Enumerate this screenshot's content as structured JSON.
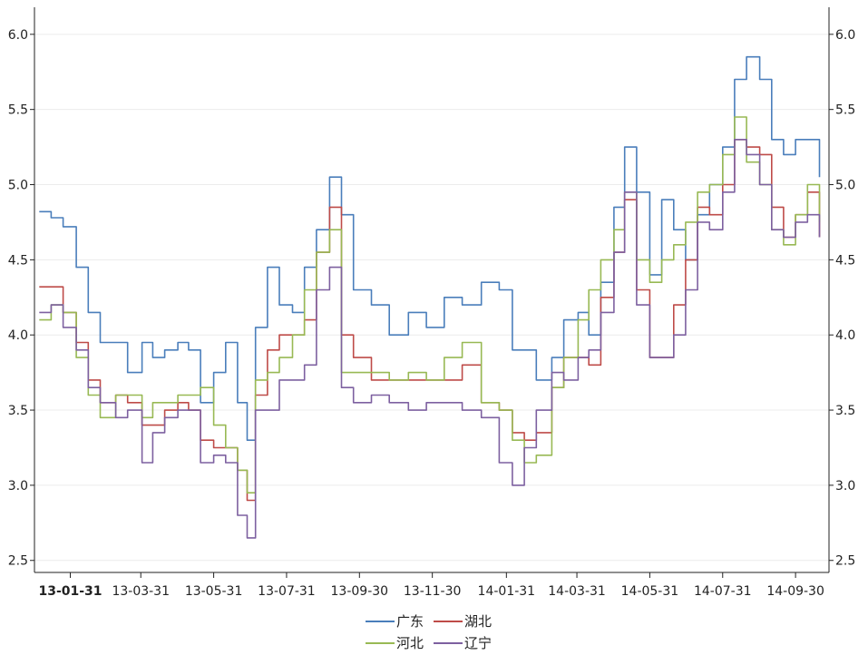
{
  "chart_data": {
    "type": "line",
    "title": "",
    "xlabel": "",
    "ylabel": "",
    "ylim": [
      2.42,
      6.18
    ],
    "yticks": [
      "2.5",
      "3.0",
      "3.5",
      "4.0",
      "4.5",
      "5.0",
      "5.5",
      "6.0"
    ],
    "x_tick_labels": [
      "13-01-31",
      "13-03-31",
      "13-05-31",
      "13-07-31",
      "13-09-30",
      "13-11-30",
      "14-01-31",
      "14-03-31",
      "14-05-31",
      "14-07-31",
      "14-09-30"
    ],
    "grid": {
      "horizontal": true,
      "vertical": false
    },
    "legend_position": "bottom",
    "series": [
      {
        "name": "广东",
        "color": "#4a7ebb",
        "x": [
          "2013-01-05",
          "2013-01-15",
          "2013-01-25",
          "2013-02-05",
          "2013-02-15",
          "2013-02-25",
          "2013-03-10",
          "2013-03-20",
          "2013-04-01",
          "2013-04-10",
          "2013-04-20",
          "2013-05-01",
          "2013-05-10",
          "2013-05-20",
          "2013-05-31",
          "2013-06-10",
          "2013-06-20",
          "2013-06-28",
          "2013-07-05",
          "2013-07-15",
          "2013-07-25",
          "2013-08-05",
          "2013-08-15",
          "2013-08-25",
          "2013-09-05",
          "2013-09-15",
          "2013-09-25",
          "2013-10-10",
          "2013-10-25",
          "2013-11-10",
          "2013-11-25",
          "2013-12-10",
          "2013-12-25",
          "2014-01-10",
          "2014-01-25",
          "2014-02-05",
          "2014-02-15",
          "2014-02-25",
          "2014-03-10",
          "2014-03-20",
          "2014-04-01",
          "2014-04-10",
          "2014-04-20",
          "2014-05-01",
          "2014-05-10",
          "2014-05-20",
          "2014-05-31",
          "2014-06-10",
          "2014-06-20",
          "2014-06-30",
          "2014-07-10",
          "2014-07-20",
          "2014-07-31",
          "2014-08-10",
          "2014-08-20",
          "2014-08-31",
          "2014-09-10",
          "2014-09-20",
          "2014-09-30",
          "2014-10-10",
          "2014-10-20"
        ],
        "values": [
          4.82,
          4.78,
          4.72,
          4.45,
          4.15,
          3.95,
          3.95,
          3.75,
          3.95,
          3.85,
          3.9,
          3.95,
          3.9,
          3.55,
          3.75,
          3.95,
          3.55,
          3.3,
          4.05,
          4.45,
          4.2,
          4.15,
          4.45,
          4.7,
          5.05,
          4.8,
          4.3,
          4.2,
          4.0,
          4.15,
          4.05,
          4.25,
          4.2,
          4.35,
          4.3,
          3.9,
          3.9,
          3.7,
          3.85,
          4.1,
          4.15,
          4.0,
          4.35,
          4.85,
          5.25,
          4.95,
          4.4,
          4.9,
          4.7,
          4.5,
          4.8,
          5.0,
          5.25,
          5.7,
          5.85,
          5.7,
          5.3,
          5.2,
          5.3,
          5.3,
          5.05
        ]
      },
      {
        "name": "湖北",
        "color": "#be4b48",
        "x": [
          "2013-01-05",
          "2013-01-15",
          "2013-01-25",
          "2013-02-05",
          "2013-02-15",
          "2013-02-25",
          "2013-03-10",
          "2013-03-20",
          "2013-04-01",
          "2013-04-10",
          "2013-04-20",
          "2013-05-01",
          "2013-05-10",
          "2013-05-20",
          "2013-05-31",
          "2013-06-10",
          "2013-06-20",
          "2013-06-28",
          "2013-07-05",
          "2013-07-15",
          "2013-07-25",
          "2013-08-05",
          "2013-08-15",
          "2013-08-25",
          "2013-09-05",
          "2013-09-15",
          "2013-09-25",
          "2013-10-10",
          "2013-10-25",
          "2013-11-10",
          "2013-11-25",
          "2013-12-10",
          "2013-12-25",
          "2014-01-10",
          "2014-01-25",
          "2014-02-05",
          "2014-02-15",
          "2014-02-25",
          "2014-03-10",
          "2014-03-20",
          "2014-04-01",
          "2014-04-10",
          "2014-04-20",
          "2014-05-01",
          "2014-05-10",
          "2014-05-20",
          "2014-05-31",
          "2014-06-10",
          "2014-06-20",
          "2014-06-30",
          "2014-07-10",
          "2014-07-20",
          "2014-07-31",
          "2014-08-10",
          "2014-08-20",
          "2014-08-31",
          "2014-09-10",
          "2014-09-20",
          "2014-09-30",
          "2014-10-10",
          "2014-10-20"
        ],
        "values": [
          4.32,
          4.32,
          4.15,
          3.95,
          3.7,
          3.55,
          3.6,
          3.55,
          3.4,
          3.4,
          3.5,
          3.55,
          3.5,
          3.3,
          3.25,
          3.25,
          3.1,
          2.9,
          3.6,
          3.9,
          4.0,
          4.0,
          4.1,
          4.55,
          4.85,
          4.0,
          3.85,
          3.7,
          3.7,
          3.7,
          3.7,
          3.7,
          3.8,
          3.55,
          3.5,
          3.35,
          3.3,
          3.35,
          3.65,
          3.85,
          3.85,
          3.8,
          4.25,
          4.55,
          4.9,
          4.3,
          3.85,
          3.85,
          4.2,
          4.5,
          4.85,
          4.8,
          5.0,
          5.3,
          5.25,
          5.2,
          4.85,
          4.65,
          4.8,
          4.95,
          4.65
        ]
      },
      {
        "name": "河北",
        "color": "#98b954",
        "x": [
          "2013-01-05",
          "2013-01-15",
          "2013-01-25",
          "2013-02-05",
          "2013-02-15",
          "2013-02-25",
          "2013-03-10",
          "2013-03-20",
          "2013-04-01",
          "2013-04-10",
          "2013-04-20",
          "2013-05-01",
          "2013-05-10",
          "2013-05-20",
          "2013-05-31",
          "2013-06-10",
          "2013-06-20",
          "2013-06-28",
          "2013-07-05",
          "2013-07-15",
          "2013-07-25",
          "2013-08-05",
          "2013-08-15",
          "2013-08-25",
          "2013-09-05",
          "2013-09-15",
          "2013-09-25",
          "2013-10-10",
          "2013-10-25",
          "2013-11-10",
          "2013-11-25",
          "2013-12-10",
          "2013-12-25",
          "2014-01-10",
          "2014-01-25",
          "2014-02-05",
          "2014-02-15",
          "2014-02-25",
          "2014-03-10",
          "2014-03-20",
          "2014-04-01",
          "2014-04-10",
          "2014-04-20",
          "2014-05-01",
          "2014-05-10",
          "2014-05-20",
          "2014-05-31",
          "2014-06-10",
          "2014-06-20",
          "2014-06-30",
          "2014-07-10",
          "2014-07-20",
          "2014-07-31",
          "2014-08-10",
          "2014-08-20",
          "2014-08-31",
          "2014-09-10",
          "2014-09-20",
          "2014-09-30",
          "2014-10-10",
          "2014-10-20"
        ],
        "values": [
          4.1,
          4.2,
          4.15,
          3.85,
          3.6,
          3.45,
          3.6,
          3.6,
          3.45,
          3.55,
          3.55,
          3.6,
          3.6,
          3.65,
          3.4,
          3.25,
          3.1,
          2.95,
          3.7,
          3.75,
          3.85,
          4.0,
          4.3,
          4.55,
          4.7,
          3.75,
          3.75,
          3.75,
          3.7,
          3.75,
          3.7,
          3.85,
          3.95,
          3.55,
          3.5,
          3.3,
          3.15,
          3.2,
          3.65,
          3.85,
          4.1,
          4.3,
          4.5,
          4.7,
          4.95,
          4.5,
          4.35,
          4.5,
          4.6,
          4.75,
          4.95,
          5.0,
          5.2,
          5.45,
          5.15,
          5.0,
          4.7,
          4.6,
          4.8,
          5.0,
          4.75
        ]
      },
      {
        "name": "辽宁",
        "color": "#7d60a0",
        "x": [
          "2013-01-05",
          "2013-01-15",
          "2013-01-25",
          "2013-02-05",
          "2013-02-15",
          "2013-02-25",
          "2013-03-10",
          "2013-03-20",
          "2013-04-01",
          "2013-04-10",
          "2013-04-20",
          "2013-05-01",
          "2013-05-10",
          "2013-05-20",
          "2013-05-31",
          "2013-06-10",
          "2013-06-20",
          "2013-06-28",
          "2013-07-05",
          "2013-07-15",
          "2013-07-25",
          "2013-08-05",
          "2013-08-15",
          "2013-08-25",
          "2013-09-05",
          "2013-09-15",
          "2013-09-25",
          "2013-10-10",
          "2013-10-25",
          "2013-11-10",
          "2013-11-25",
          "2013-12-10",
          "2013-12-25",
          "2014-01-10",
          "2014-01-25",
          "2014-02-05",
          "2014-02-15",
          "2014-02-25",
          "2014-03-10",
          "2014-03-20",
          "2014-04-01",
          "2014-04-10",
          "2014-04-20",
          "2014-05-01",
          "2014-05-10",
          "2014-05-20",
          "2014-05-31",
          "2014-06-10",
          "2014-06-20",
          "2014-06-30",
          "2014-07-10",
          "2014-07-20",
          "2014-07-31",
          "2014-08-10",
          "2014-08-20",
          "2014-08-31",
          "2014-09-10",
          "2014-09-20",
          "2014-09-30",
          "2014-10-10",
          "2014-10-20"
        ],
        "values": [
          4.15,
          4.2,
          4.05,
          3.9,
          3.65,
          3.55,
          3.45,
          3.5,
          3.15,
          3.35,
          3.45,
          3.5,
          3.5,
          3.15,
          3.2,
          3.15,
          2.8,
          2.65,
          3.5,
          3.5,
          3.7,
          3.7,
          3.8,
          4.3,
          4.45,
          3.65,
          3.55,
          3.6,
          3.55,
          3.5,
          3.55,
          3.55,
          3.5,
          3.45,
          3.15,
          3.0,
          3.25,
          3.5,
          3.75,
          3.7,
          3.85,
          3.9,
          4.15,
          4.55,
          4.95,
          4.2,
          3.85,
          3.85,
          4.0,
          4.3,
          4.75,
          4.7,
          4.95,
          5.3,
          5.2,
          5.0,
          4.7,
          4.65,
          4.75,
          4.8,
          4.65
        ]
      }
    ]
  }
}
